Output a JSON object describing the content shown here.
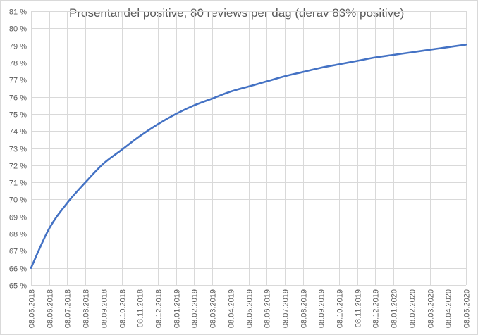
{
  "chart_data": {
    "type": "line",
    "title": "Prosentandel positive, 80 reviews per dag (derav 83% positive)",
    "xlabel": "",
    "ylabel": "",
    "ylim": [
      65,
      81
    ],
    "y_tick_step": 1,
    "y_tick_suffix": " %",
    "grid": true,
    "legend": "none",
    "line_color": "#4472c4",
    "gridline_color": "#d9d9d9",
    "x_tick_labels": [
      "08.05.2018",
      "08.06.2018",
      "08.07.2018",
      "08.08.2018",
      "08.09.2018",
      "08.10.2018",
      "08.11.2018",
      "08.12.2018",
      "08.01.2019",
      "08.02.2019",
      "08.03.2019",
      "08.04.2019",
      "08.05.2019",
      "08.06.2019",
      "08.07.2019",
      "08.08.2019",
      "08.09.2019",
      "08.10.2019",
      "08.11.2019",
      "08.12.2019",
      "08.01.2020",
      "08.02.2020",
      "08.03.2020",
      "08.04.2020",
      "08.05.2020"
    ],
    "series": [
      {
        "x": [
          "08.05.2018",
          "08.06.2018",
          "08.07.2018",
          "08.08.2018",
          "08.09.2018",
          "08.10.2018",
          "08.11.2018",
          "08.12.2018",
          "08.01.2019",
          "08.02.2019",
          "08.03.2019",
          "08.04.2019",
          "08.05.2019",
          "08.06.2019",
          "08.07.2019",
          "08.08.2019",
          "08.09.2019",
          "08.10.2019",
          "08.11.2019",
          "08.12.2019",
          "08.01.2020",
          "08.02.2020",
          "08.03.2020",
          "08.04.2020",
          "08.05.2020"
        ],
        "values": [
          66.0,
          68.3,
          69.8,
          71.0,
          72.1,
          72.9,
          73.7,
          74.4,
          75.0,
          75.5,
          75.9,
          76.3,
          76.6,
          76.9,
          77.2,
          77.45,
          77.7,
          77.9,
          78.1,
          78.3,
          78.45,
          78.6,
          78.75,
          78.9,
          79.05
        ]
      }
    ]
  }
}
